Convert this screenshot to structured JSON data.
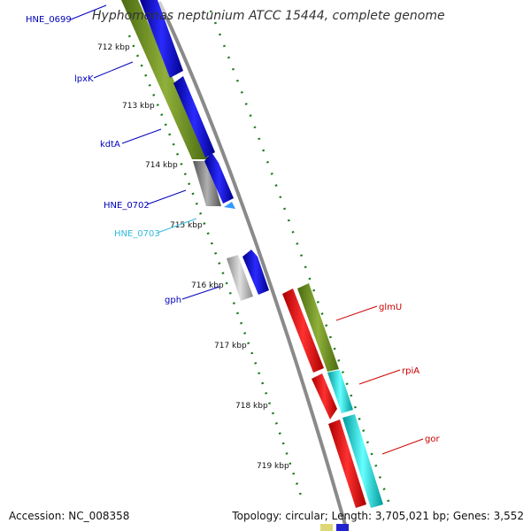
{
  "title": "Hyphomonas neptunium ATCC 15444, complete genome",
  "accession": "Accession: NC_008358",
  "topology": "Topology: circular; Length: 3,705,021 bp; Genes: 3,552",
  "scale_ticks": [
    "712 kbp",
    "713 kbp",
    "714 kbp",
    "715 kbp",
    "716 kbp",
    "717 kbp",
    "718 kbp",
    "719 kbp"
  ],
  "genes": [
    {
      "name": "HNE_0699",
      "color": "#0000bb"
    },
    {
      "name": "lpxK",
      "color": "#0000bb"
    },
    {
      "name": "kdtA",
      "color": "#0000bb"
    },
    {
      "name": "HNE_0702",
      "color": "#0000bb"
    },
    {
      "name": "HNE_0703",
      "color": "#33bbdd"
    },
    {
      "name": "gph",
      "color": "#0000bb"
    },
    {
      "name": "glmU",
      "color": "#cc0000"
    },
    {
      "name": "rpiA",
      "color": "#cc0000"
    },
    {
      "name": "gor",
      "color": "#cc0000"
    }
  ],
  "colors": {
    "cds_blue": "#0000ee",
    "cog_olive": "#6b8a23",
    "cds_red": "#ee0000",
    "cog_cyan": "#00dddd",
    "gray": "#8a8a8a",
    "tick_green": "#1a7a1a"
  }
}
